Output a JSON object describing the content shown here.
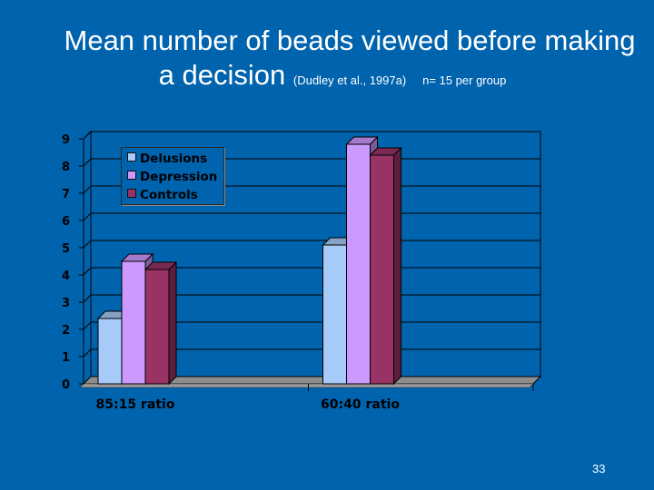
{
  "slide": {
    "title_line1": "Mean number of beads viewed before making",
    "title_line2": "a decision",
    "citation": "(Dudley et al., 1997a)",
    "sample_note": "n= 15 per group",
    "slide_number": "33"
  },
  "chart_data": {
    "type": "bar",
    "categories": [
      "85:15 ratio",
      "60:40 ratio"
    ],
    "series": [
      {
        "name": "Delusions",
        "values": [
          2.4,
          5.1
        ],
        "color": "#a6cbf8"
      },
      {
        "name": "Depression",
        "values": [
          4.5,
          8.8
        ],
        "color": "#cc99ff"
      },
      {
        "name": "Controls",
        "values": [
          4.2,
          8.4
        ],
        "color": "#993366"
      }
    ],
    "ylim": [
      0,
      9
    ],
    "yticks": [
      "0",
      "1",
      "2",
      "3",
      "4",
      "5",
      "6",
      "7",
      "8",
      "9"
    ],
    "grid": true,
    "legend_position": "top-left",
    "three_d": true,
    "plot_background": "#0063ad"
  }
}
